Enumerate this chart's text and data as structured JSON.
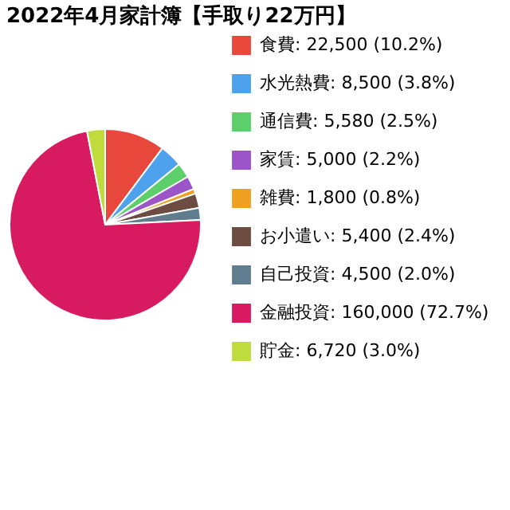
{
  "chart_data": {
    "type": "pie",
    "title": "2022年4月家計簿【手取り22万円】",
    "categories": [
      "食費: 22,500 (10.2%)",
      "水光熱費: 8,500 (3.8%)",
      "通信費: 5,580 (2.5%)",
      "家賃: 5,000 (2.2%)",
      "雑費: 1,800 (0.8%)",
      "お小遣い: 5,400 (2.4%)",
      "自己投資: 4,500 (2.0%)",
      "金融投資: 160,000 (72.7%)",
      "貯金: 6,720 (3.0%)"
    ],
    "values": [
      22500,
      8500,
      5580,
      5000,
      1800,
      5400,
      4500,
      160000,
      6720
    ],
    "colors": [
      "#e8473b",
      "#4ea1ec",
      "#5ccf6a",
      "#9b55c8",
      "#f0a020",
      "#6d4c41",
      "#5f7d8e",
      "#d81b60",
      "#c0dc3c"
    ],
    "legend": "right"
  }
}
